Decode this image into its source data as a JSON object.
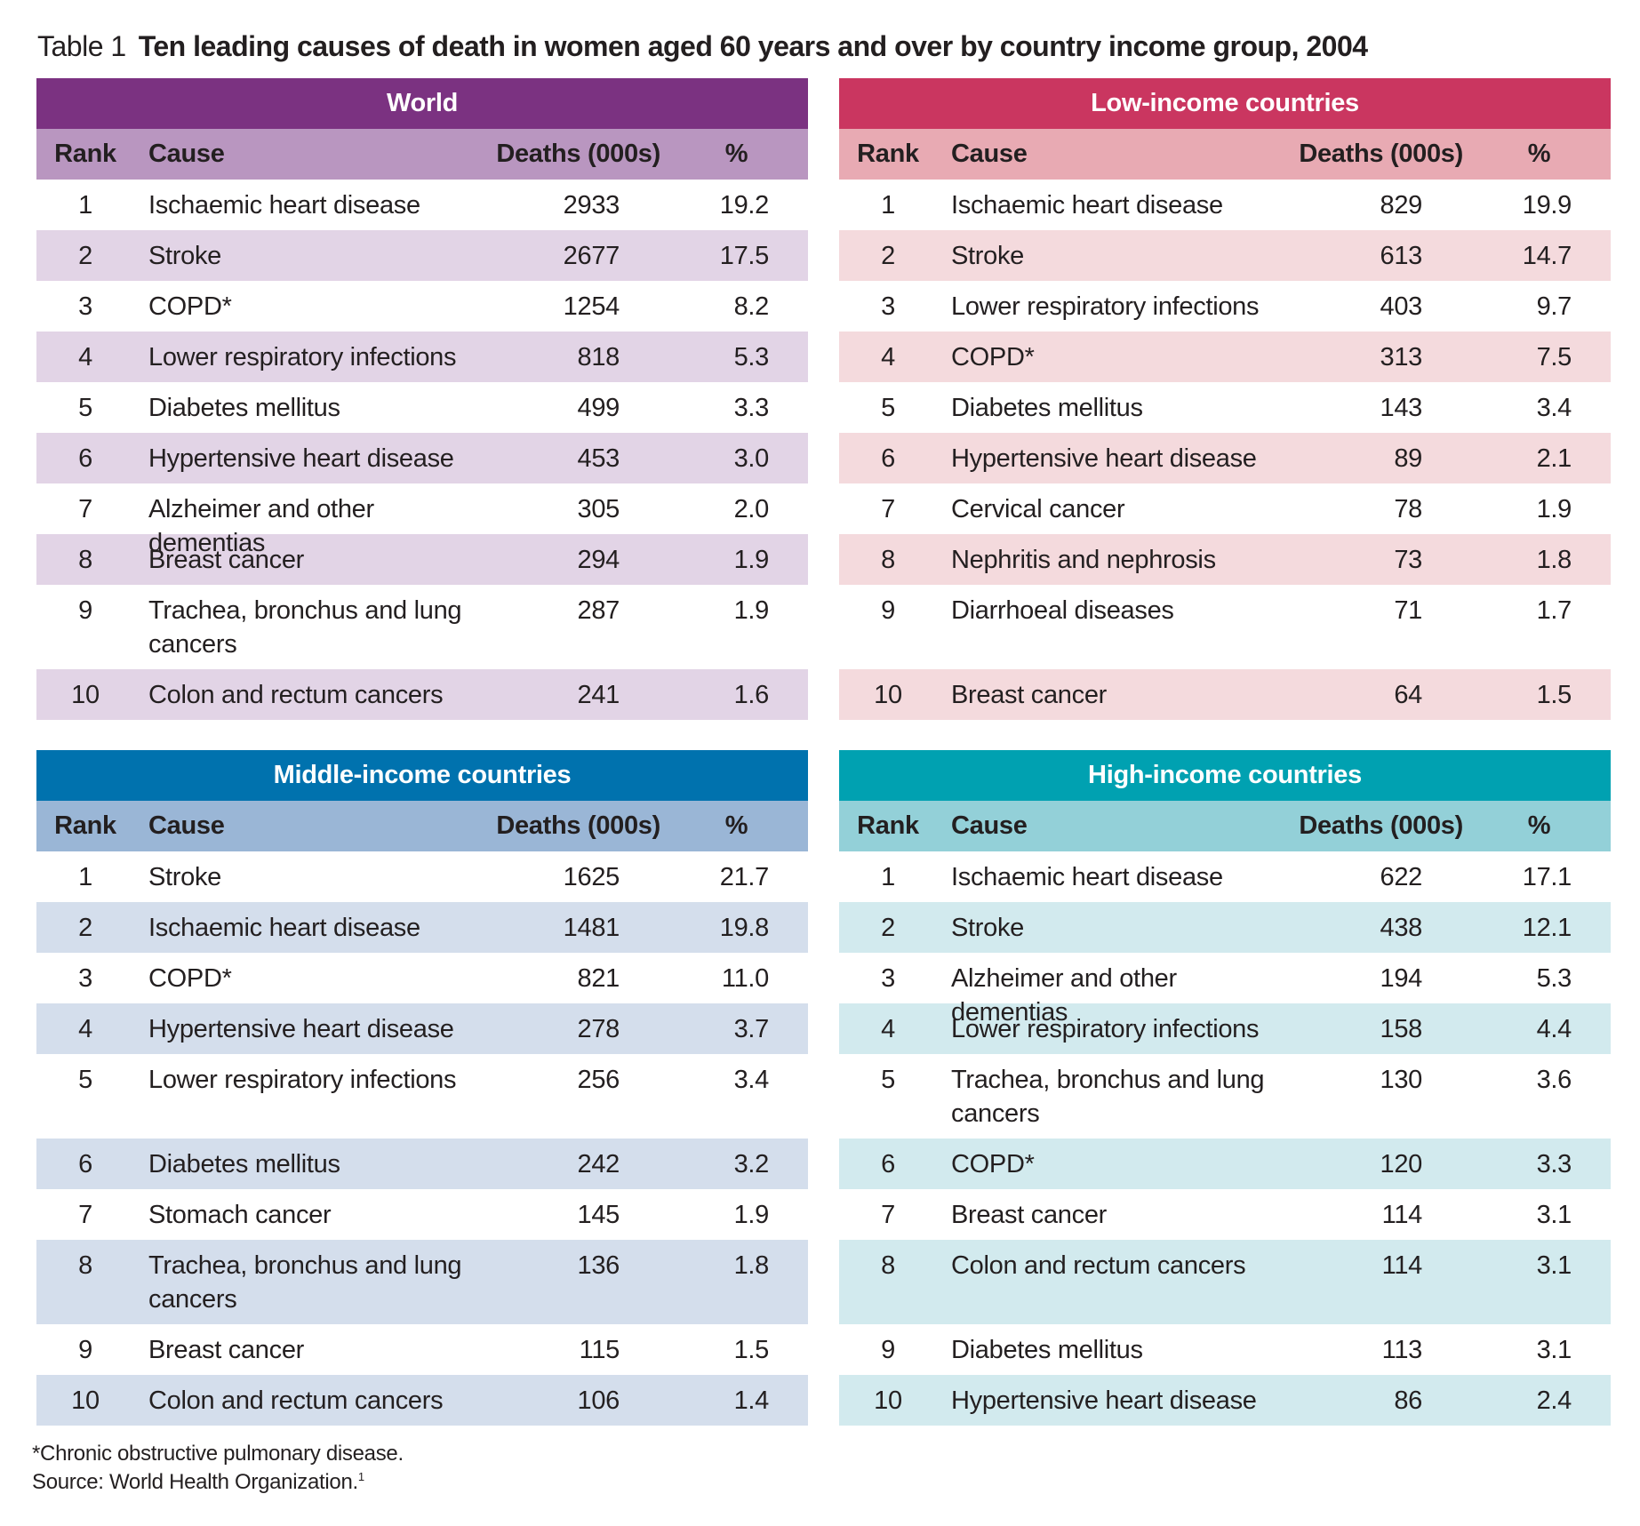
{
  "caption": {
    "label": "Table 1",
    "title": "Ten leading causes of death in women aged 60 years and over by country income group, 2004"
  },
  "columns": {
    "rank": "Rank",
    "cause": "Cause",
    "deaths": "Deaths (000s)",
    "pct": "%"
  },
  "panels": [
    {
      "id": "world",
      "title": "World",
      "colors": {
        "band": "#7b3281",
        "head": "#b996c0",
        "stripe": "#e2d4e6"
      },
      "rows": [
        {
          "rank": "1",
          "cause": "Ischaemic heart disease",
          "deaths": "2933",
          "pct": "19.2"
        },
        {
          "rank": "2",
          "cause": "Stroke",
          "deaths": "2677",
          "pct": "17.5"
        },
        {
          "rank": "3",
          "cause": "COPD*",
          "deaths": "1254",
          "pct": "8.2"
        },
        {
          "rank": "4",
          "cause": "Lower respiratory infections",
          "deaths": "818",
          "pct": "5.3"
        },
        {
          "rank": "5",
          "cause": "Diabetes mellitus",
          "deaths": "499",
          "pct": "3.3"
        },
        {
          "rank": "6",
          "cause": "Hypertensive heart disease",
          "deaths": "453",
          "pct": "3.0"
        },
        {
          "rank": "7",
          "cause": "Alzheimer and other dementias",
          "deaths": "305",
          "pct": "2.0"
        },
        {
          "rank": "8",
          "cause": "Breast cancer",
          "deaths": "294",
          "pct": "1.9"
        },
        {
          "rank": "9",
          "cause": "Trachea, bronchus and lung cancers",
          "deaths": "287",
          "pct": "1.9"
        },
        {
          "rank": "10",
          "cause": "Colon and rectum cancers",
          "deaths": "241",
          "pct": "1.6"
        }
      ]
    },
    {
      "id": "low",
      "title": "Low-income countries",
      "colors": {
        "band": "#ca3660",
        "head": "#e8aab3",
        "stripe": "#f4dadd"
      },
      "rows": [
        {
          "rank": "1",
          "cause": "Ischaemic heart disease",
          "deaths": "829",
          "pct": "19.9"
        },
        {
          "rank": "2",
          "cause": "Stroke",
          "deaths": "613",
          "pct": "14.7"
        },
        {
          "rank": "3",
          "cause": "Lower respiratory infections",
          "deaths": "403",
          "pct": "9.7"
        },
        {
          "rank": "4",
          "cause": "COPD*",
          "deaths": "313",
          "pct": "7.5"
        },
        {
          "rank": "5",
          "cause": "Diabetes mellitus",
          "deaths": "143",
          "pct": "3.4"
        },
        {
          "rank": "6",
          "cause": "Hypertensive heart disease",
          "deaths": "89",
          "pct": "2.1"
        },
        {
          "rank": "7",
          "cause": "Cervical cancer",
          "deaths": "78",
          "pct": "1.9"
        },
        {
          "rank": "8",
          "cause": "Nephritis and nephrosis",
          "deaths": "73",
          "pct": "1.8"
        },
        {
          "rank": "9",
          "cause": "Diarrhoeal diseases",
          "deaths": "71",
          "pct": "1.7"
        },
        {
          "rank": "10",
          "cause": "Breast cancer",
          "deaths": "64",
          "pct": "1.5"
        }
      ]
    },
    {
      "id": "middle",
      "title": "Middle-income countries",
      "colors": {
        "band": "#0072ae",
        "head": "#9ab6d6",
        "stripe": "#d4deec"
      },
      "rows": [
        {
          "rank": "1",
          "cause": "Stroke",
          "deaths": "1625",
          "pct": "21.7"
        },
        {
          "rank": "2",
          "cause": "Ischaemic heart disease",
          "deaths": "1481",
          "pct": "19.8"
        },
        {
          "rank": "3",
          "cause": "COPD*",
          "deaths": "821",
          "pct": "11.0"
        },
        {
          "rank": "4",
          "cause": "Hypertensive heart disease",
          "deaths": "278",
          "pct": "3.7"
        },
        {
          "rank": "5",
          "cause": "Lower respiratory infections",
          "deaths": "256",
          "pct": "3.4"
        },
        {
          "rank": "6",
          "cause": "Diabetes mellitus",
          "deaths": "242",
          "pct": "3.2"
        },
        {
          "rank": "7",
          "cause": "Stomach cancer",
          "deaths": "145",
          "pct": "1.9"
        },
        {
          "rank": "8",
          "cause": "Trachea, bronchus and lung cancers",
          "deaths": "136",
          "pct": "1.8"
        },
        {
          "rank": "9",
          "cause": "Breast cancer",
          "deaths": "115",
          "pct": "1.5"
        },
        {
          "rank": "10",
          "cause": "Colon and rectum cancers",
          "deaths": "106",
          "pct": "1.4"
        }
      ]
    },
    {
      "id": "high",
      "title": "High-income countries",
      "colors": {
        "band": "#00a1b1",
        "head": "#93d0d8",
        "stripe": "#d2eaee"
      },
      "rows": [
        {
          "rank": "1",
          "cause": "Ischaemic heart disease",
          "deaths": "622",
          "pct": "17.1"
        },
        {
          "rank": "2",
          "cause": "Stroke",
          "deaths": "438",
          "pct": "12.1"
        },
        {
          "rank": "3",
          "cause": "Alzheimer and other dementias",
          "deaths": "194",
          "pct": "5.3"
        },
        {
          "rank": "4",
          "cause": "Lower respiratory infections",
          "deaths": "158",
          "pct": "4.4"
        },
        {
          "rank": "5",
          "cause": "Trachea, bronchus and lung cancers",
          "deaths": "130",
          "pct": "3.6"
        },
        {
          "rank": "6",
          "cause": "COPD*",
          "deaths": "120",
          "pct": "3.3"
        },
        {
          "rank": "7",
          "cause": "Breast cancer",
          "deaths": "114",
          "pct": "3.1"
        },
        {
          "rank": "8",
          "cause": "Colon and rectum cancers",
          "deaths": "114",
          "pct": "3.1"
        },
        {
          "rank": "9",
          "cause": "Diabetes mellitus",
          "deaths": "113",
          "pct": "3.1"
        },
        {
          "rank": "10",
          "cause": "Hypertensive heart disease",
          "deaths": "86",
          "pct": "2.4"
        }
      ]
    }
  ],
  "footnotes": {
    "copd": "*Chronic obstructive pulmonary disease.",
    "source": "Source: World Health Organization.",
    "source_ref": "1"
  }
}
